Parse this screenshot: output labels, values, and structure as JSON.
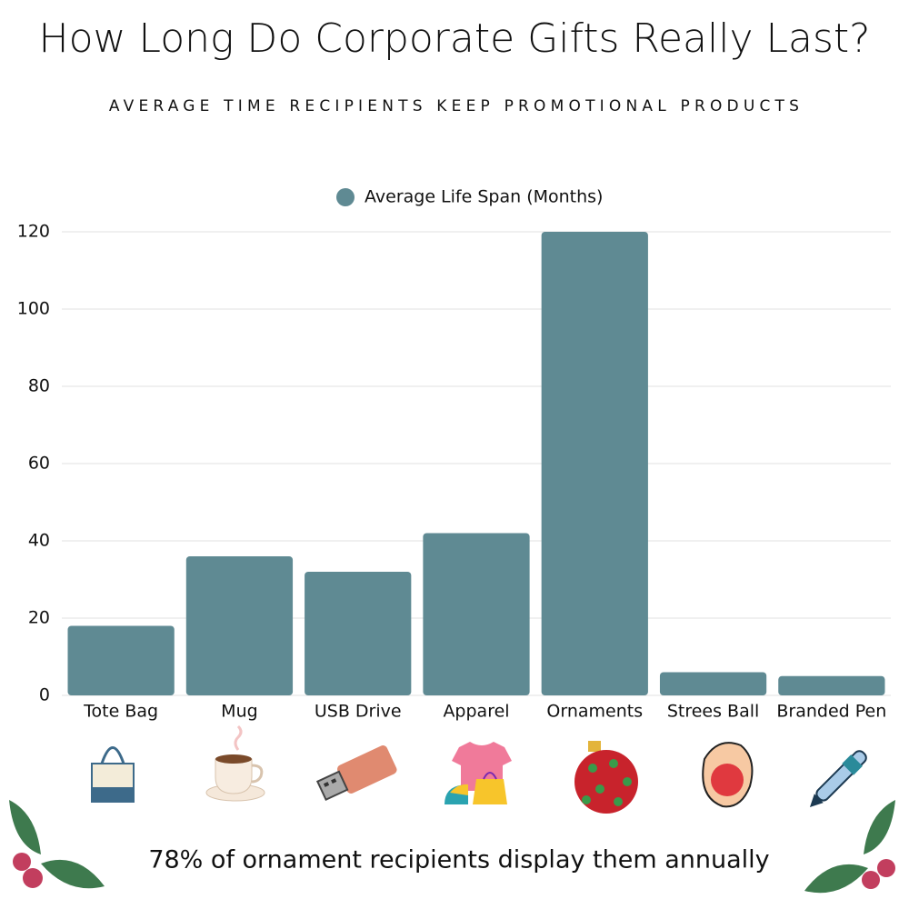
{
  "chart_data": {
    "type": "bar",
    "title": "How Long Do Corporate Gifts Really Last?",
    "subtitle": "AVERAGE TIME RECIPIENTS KEEP PROMOTIONAL PRODUCTS",
    "categories": [
      "Tote Bag",
      "Mug",
      "USB Drive",
      "Apparel",
      "Ornaments",
      "Strees Ball",
      "Branded Pen"
    ],
    "series": [
      {
        "name": "Average Life Span (Months)",
        "color": "#5f8a93",
        "values": [
          18,
          36,
          32,
          42,
          120,
          6,
          5
        ]
      }
    ],
    "ylim": [
      0,
      120
    ],
    "yticks": [
      0,
      20,
      40,
      60,
      80,
      100,
      120
    ],
    "grid": true,
    "legend": "top",
    "annotation": "78% of ornament recipients display them annually"
  }
}
